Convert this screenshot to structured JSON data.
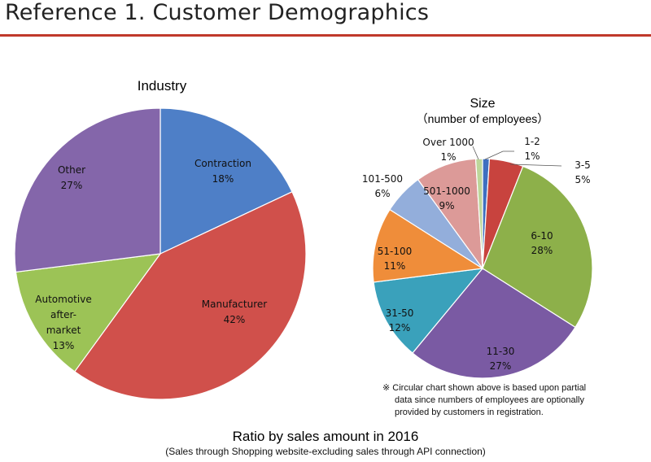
{
  "page_title": "Reference 1. Customer Demographics",
  "colors": {
    "rule": "#c0392b"
  },
  "chart_data": [
    {
      "type": "pie",
      "title": "Industry",
      "slices": [
        {
          "label": "Contraction",
          "value": 18,
          "value_label": "18%",
          "color": "#4e7fc7"
        },
        {
          "label": "Manufacturer",
          "value": 42,
          "value_label": "42%",
          "color": "#d0504b"
        },
        {
          "label": "Automotive after-market",
          "label_lines": [
            "Automotive",
            "after-",
            "market"
          ],
          "value": 13,
          "value_label": "13%",
          "color": "#9cc356"
        },
        {
          "label": "Other",
          "value": 27,
          "value_label": "27%",
          "color": "#8466aa"
        }
      ]
    },
    {
      "type": "pie",
      "title": "Size",
      "subtitle": "（number of employees）",
      "slices": [
        {
          "label": "1-2",
          "value": 1,
          "value_label": "1%",
          "color": "#3e6fc0"
        },
        {
          "label": "3-5",
          "value": 5,
          "value_label": "5%",
          "color": "#c8433e"
        },
        {
          "label": "6-10",
          "value": 28,
          "value_label": "28%",
          "color": "#8db04a"
        },
        {
          "label": "11-30",
          "value": 27,
          "value_label": "27%",
          "color": "#7a5aa3"
        },
        {
          "label": "31-50",
          "value": 12,
          "value_label": "12%",
          "color": "#3aa1bb"
        },
        {
          "label": "51-100",
          "value": 11,
          "value_label": "11%",
          "color": "#ef8d3a"
        },
        {
          "label": "101-500",
          "value": 6,
          "value_label": "6%",
          "color": "#93aedb"
        },
        {
          "label": "501-1000",
          "value": 9,
          "value_label": "9%",
          "color": "#dc9a98"
        },
        {
          "label": "Over 1000",
          "value": 1,
          "value_label": "1%",
          "color": "#bdd69a"
        }
      ]
    }
  ],
  "note": {
    "lines": [
      "※ Circular chart shown above is based upon partial",
      "data since numbers of employees are optionally",
      "provided by customers in registration."
    ]
  },
  "footer": {
    "title": "Ratio by sales amount in 2016",
    "subtitle": "(Sales through Shopping website-excluding sales through API connection)"
  }
}
